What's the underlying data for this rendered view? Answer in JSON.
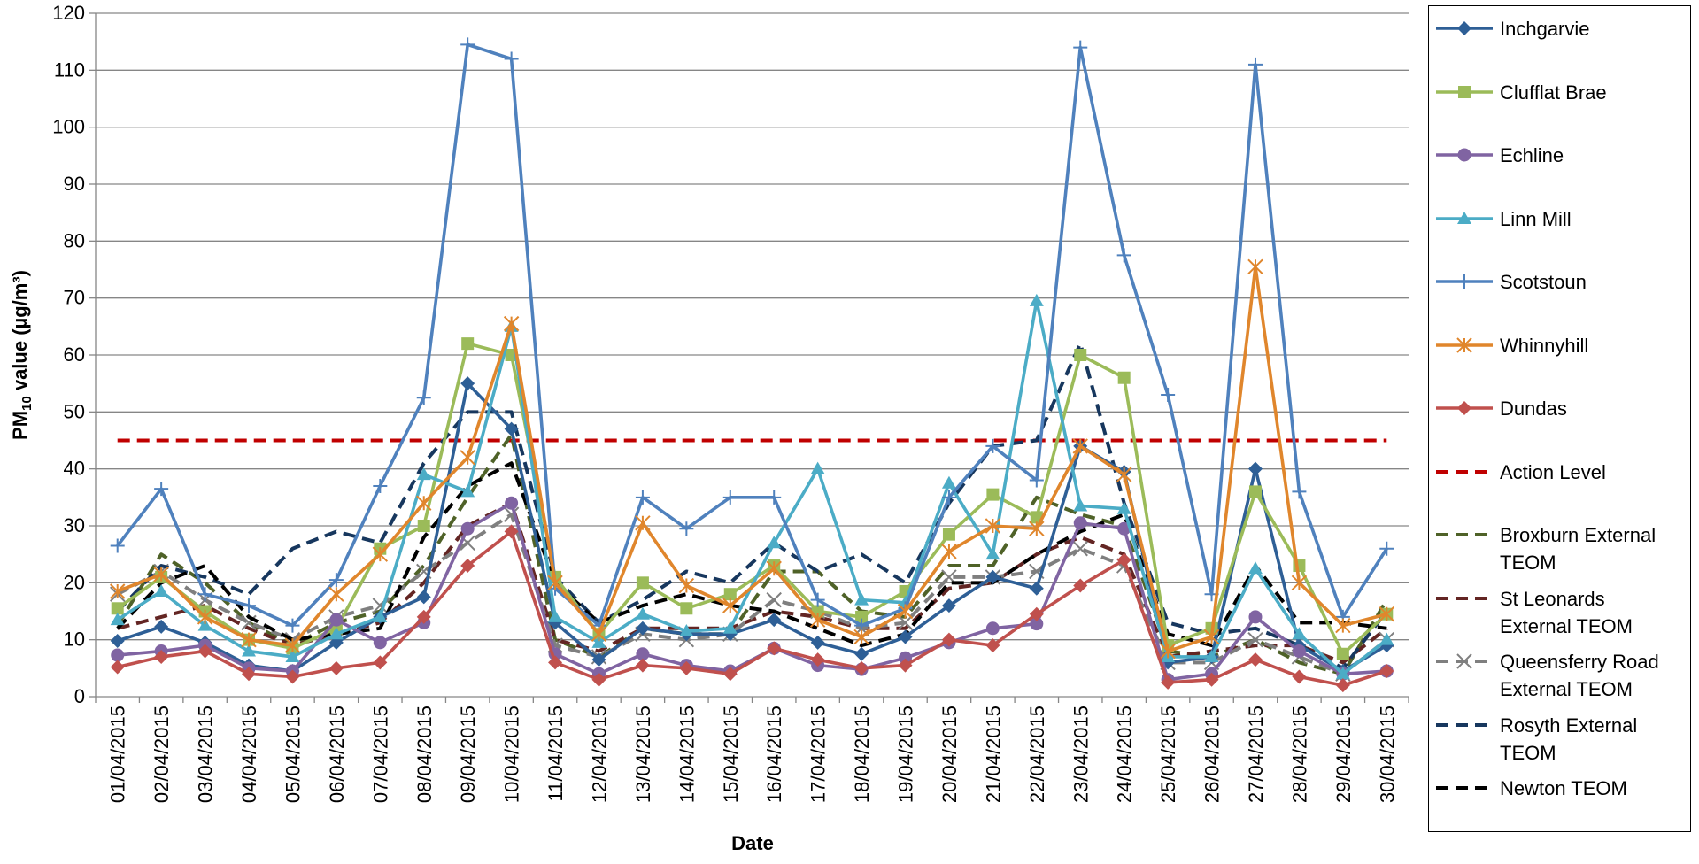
{
  "chart_data": {
    "type": "line",
    "x_label": "Date",
    "ylabel_parts": [
      "PM",
      "10",
      " value (µg/m³)"
    ],
    "categories": [
      "01/04/2015",
      "02/04/2015",
      "03/04/2015",
      "04/04/2015",
      "05/04/2015",
      "06/04/2015",
      "07/04/2015",
      "08/04/2015",
      "09/04/2015",
      "10/04/2015",
      "11/04/2015",
      "12/04/2015",
      "13/04/2015",
      "14/04/2015",
      "15/04/2015",
      "16/04/2015",
      "17/04/2015",
      "18/04/2015",
      "19/04/2015",
      "20/04/2015",
      "21/04/2015",
      "22/04/2015",
      "23/04/2015",
      "24/04/2015",
      "25/04/2015",
      "26/04/2015",
      "27/04/2015",
      "28/04/2015",
      "29/04/2015",
      "30/04/2015"
    ],
    "ylim": [
      0,
      120
    ],
    "yticks": [
      0,
      10,
      20,
      30,
      40,
      50,
      60,
      70,
      80,
      90,
      100,
      110,
      120
    ],
    "grid": true,
    "series": [
      {
        "name": "Inchgarvie",
        "color": "#2e5f96",
        "marker": "diamond",
        "dash": false,
        "values": [
          9.8,
          12.3,
          9.5,
          5.5,
          4.5,
          9.5,
          14,
          17.5,
          55,
          47,
          13,
          6.5,
          12,
          11,
          11,
          13.5,
          9.5,
          7.5,
          10.5,
          16,
          21,
          19,
          44,
          39.5,
          6,
          7,
          40,
          9,
          4.5,
          9
        ]
      },
      {
        "name": "Clufflat Brae",
        "color": "#9bbb59",
        "marker": "square",
        "dash": false,
        "values": [
          15.5,
          21,
          15,
          10,
          8.5,
          12,
          26,
          30,
          62,
          60,
          21,
          11,
          20,
          15.5,
          18,
          23,
          15,
          14,
          18.5,
          28.5,
          35.5,
          31.5,
          60,
          56,
          9,
          12,
          36,
          23,
          7.5,
          14.5
        ]
      },
      {
        "name": "Echline",
        "color": "#8064a2",
        "marker": "circle",
        "dash": false,
        "values": [
          7.3,
          8,
          9,
          5,
          4.5,
          13.5,
          9.5,
          13,
          29.5,
          34,
          7.5,
          4,
          7.5,
          5.5,
          4.5,
          8.5,
          5.5,
          4.8,
          6.8,
          9.5,
          12,
          12.8,
          30.5,
          29.5,
          3,
          4,
          14,
          8,
          4,
          4.5
        ]
      },
      {
        "name": "Linn Mill",
        "color": "#4bacc6",
        "marker": "triangle",
        "dash": false,
        "values": [
          13.5,
          18.5,
          12.5,
          8,
          7,
          11,
          14,
          39,
          36,
          65,
          14,
          9.5,
          14.5,
          11.5,
          12,
          27,
          40,
          17,
          16.5,
          37.5,
          25,
          69.5,
          33.5,
          33,
          7,
          7,
          22.5,
          11,
          4,
          10
        ]
      },
      {
        "name": "Scotstoun",
        "color": "#4f81bd",
        "marker": "plus",
        "dash": false,
        "values": [
          26.5,
          36.5,
          18,
          16,
          12.5,
          20.5,
          37,
          52.5,
          114.5,
          112,
          19,
          12.5,
          35,
          29.5,
          35,
          35,
          17,
          12.5,
          15.5,
          35,
          44,
          38,
          114,
          77.5,
          53,
          18,
          111,
          36,
          14,
          26
        ]
      },
      {
        "name": "Whinnyhill",
        "color": "#e0862c",
        "marker": "star",
        "dash": false,
        "values": [
          18.5,
          21.5,
          14,
          10,
          9,
          18,
          25,
          34,
          42,
          65.5,
          20,
          11,
          30.5,
          19.5,
          16,
          22.5,
          13.5,
          10.5,
          15,
          25.5,
          30,
          29.5,
          44,
          39,
          8,
          10.5,
          75.5,
          20,
          12.5,
          14.5
        ]
      },
      {
        "name": "Dundas",
        "color": "#c0504d",
        "marker": "diamond",
        "dash": false,
        "values": [
          5.2,
          7,
          8,
          4,
          3.5,
          5,
          6,
          14,
          23,
          29,
          6,
          3,
          5.5,
          5,
          4,
          8.5,
          6.5,
          5,
          5.5,
          10,
          9,
          14.5,
          19.5,
          24,
          2.5,
          3,
          6.5,
          3.5,
          2,
          4.5
        ]
      },
      {
        "name": "Action Level",
        "color": "#c00000",
        "marker": "none",
        "dash": true,
        "values": [
          45,
          45,
          45,
          45,
          45,
          45,
          45,
          45,
          45,
          45,
          45,
          45,
          45,
          45,
          45,
          45,
          45,
          45,
          45,
          45,
          45,
          45,
          45,
          45,
          45,
          45,
          45,
          45,
          45,
          45
        ]
      },
      {
        "name": "Broxburn External TEOM",
        "color": "#4f6228",
        "marker": "none",
        "dash": true,
        "values": [
          12.5,
          25,
          20,
          13,
          9,
          13,
          15,
          23,
          35,
          46,
          10,
          7,
          12,
          11,
          11,
          22,
          22,
          15,
          14,
          23,
          23,
          35,
          32,
          30,
          8,
          7,
          10,
          6,
          4,
          17
        ]
      },
      {
        "name": "St Leonards External TEOM",
        "color": "#632523",
        "marker": "none",
        "dash": true,
        "values": [
          12,
          14,
          16,
          12,
          9,
          11,
          13,
          20,
          30,
          34,
          10,
          8,
          12,
          12,
          12,
          15,
          14,
          12,
          12,
          19,
          20,
          25,
          28,
          25,
          7,
          8,
          9,
          9,
          6,
          12
        ]
      },
      {
        "name": "Queensferry Road External TEOM",
        "color": "#7f7f7f",
        "marker": "x",
        "dash": true,
        "values": [
          18,
          22,
          17,
          13,
          10,
          14,
          16,
          22,
          27,
          32,
          9,
          7,
          11,
          10,
          11,
          17,
          15,
          12,
          13,
          21,
          21,
          22,
          26,
          23,
          6,
          6,
          10,
          7,
          4,
          10
        ]
      },
      {
        "name": "Rosyth External TEOM",
        "color": "#17375e",
        "marker": "none",
        "dash": true,
        "values": [
          15,
          23,
          21,
          18,
          26,
          29,
          27,
          41,
          50,
          50,
          21,
          13,
          17,
          22,
          20,
          27,
          22,
          25,
          20,
          34,
          44,
          45,
          62,
          34,
          13,
          11,
          12,
          9,
          5,
          15
        ]
      },
      {
        "name": "Newton TEOM",
        "color": "#000000",
        "marker": "none",
        "dash": true,
        "values": [
          12,
          20,
          23,
          14,
          10,
          11,
          12,
          28,
          37,
          41,
          20,
          13,
          16,
          18,
          16,
          15,
          12,
          9,
          11,
          20,
          20,
          25,
          29,
          32,
          11,
          9,
          23,
          13,
          13,
          12
        ]
      }
    ]
  }
}
